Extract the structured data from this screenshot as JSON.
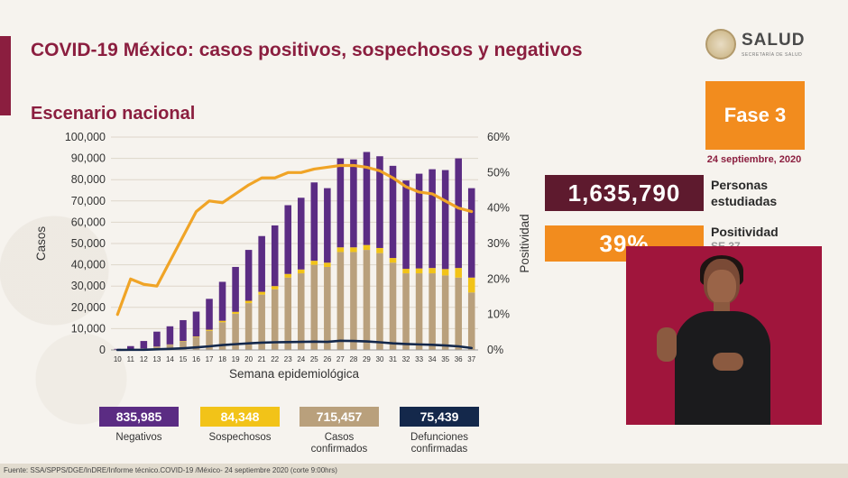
{
  "header": {
    "title": "COVID-19 México: casos positivos, sospechosos y negativos",
    "subtitle": "Escenario nacional",
    "logo_text": "SALUD",
    "logo_subtext": "SECRETARÍA DE SALUD"
  },
  "phase": {
    "label": "Fase 3",
    "date": "24 septiembre, 2020"
  },
  "stats": {
    "people_value": "1,635,790",
    "people_label_1": "Personas",
    "people_label_2": "estudiadas",
    "positivity_value": "39%",
    "positivity_label": "Positividad",
    "positivity_label_cut": "SE 37"
  },
  "legend": [
    {
      "value": "835,985",
      "label_1": "Negativos",
      "label_2": "",
      "color": "#5b2c83"
    },
    {
      "value": "84,348",
      "label_1": "Sospechosos",
      "label_2": "",
      "color": "#f2c318"
    },
    {
      "value": "715,457",
      "label_1": "Casos",
      "label_2": "confirmados",
      "color": "#b9a07c"
    },
    {
      "value": "75,439",
      "label_1": "Defunciones",
      "label_2": "confirmadas",
      "color": "#14284b"
    }
  ],
  "footer": "Fuente: SSA/SPPS/DGE/InDRE/Informe técnico.COVID-19 /México- 24 septiembre 2020 (corte 9:00hrs)",
  "chart_data": {
    "type": "bar",
    "stacked": true,
    "xlabel": "Semana epidemiológica",
    "ylabel": "Casos",
    "y2label": "Positividad",
    "ylim": [
      0,
      100000
    ],
    "y2lim": [
      0,
      60
    ],
    "yticks": [
      "0",
      "10,000",
      "20,000",
      "30,000",
      "40,000",
      "50,000",
      "60,000",
      "70,000",
      "80,000",
      "90,000",
      "100,000"
    ],
    "y2ticks": [
      "0%",
      "10%",
      "20%",
      "30%",
      "40%",
      "50%",
      "60%"
    ],
    "categories": [
      "10",
      "11",
      "12",
      "13",
      "14",
      "15",
      "16",
      "17",
      "18",
      "19",
      "20",
      "21",
      "22",
      "23",
      "24",
      "25",
      "26",
      "27",
      "28",
      "29",
      "30",
      "31",
      "32",
      "33",
      "34",
      "35",
      "36",
      "37"
    ],
    "series": [
      {
        "name": "Casos confirmados",
        "color": "#b9a07c",
        "values": [
          0,
          300,
          700,
          1500,
          2500,
          4000,
          6000,
          9000,
          13000,
          17000,
          22000,
          26000,
          28500,
          34000,
          36000,
          40000,
          39000,
          46000,
          46000,
          47000,
          45500,
          41000,
          36000,
          36000,
          36000,
          35000,
          34000,
          27000
        ]
      },
      {
        "name": "Sospechosos",
        "color": "#f2c318",
        "values": [
          0,
          0,
          0,
          100,
          100,
          200,
          300,
          500,
          700,
          900,
          1100,
          1300,
          1500,
          1700,
          1800,
          1900,
          2000,
          2200,
          2200,
          2300,
          2400,
          2200,
          2100,
          2300,
          2500,
          3000,
          4500,
          7000
        ]
      },
      {
        "name": "Negativos",
        "color": "#5b2c83",
        "values": [
          500,
          1500,
          3500,
          7000,
          8500,
          9800,
          11700,
          14500,
          18300,
          21100,
          23900,
          26200,
          28500,
          32300,
          33700,
          36800,
          35000,
          41800,
          41300,
          43700,
          43100,
          43300,
          41500,
          44500,
          46400,
          46500,
          51500,
          42000
        ]
      },
      {
        "name": "Defunciones confirmadas",
        "type": "line",
        "color": "#14284b",
        "values": [
          0,
          50,
          100,
          300,
          500,
          800,
          1200,
          1700,
          2300,
          2700,
          3100,
          3400,
          3600,
          3700,
          3800,
          3900,
          3800,
          4300,
          4200,
          4000,
          3600,
          3100,
          2800,
          2600,
          2400,
          2100,
          1700,
          900
        ]
      },
      {
        "name": "Positividad",
        "type": "line",
        "axis": "right",
        "color": "#f0a426",
        "values": [
          10,
          20,
          18.5,
          18,
          25,
          32,
          39,
          42,
          41.5,
          44,
          46.5,
          48.5,
          48.5,
          50,
          50,
          51,
          51.5,
          52,
          52,
          51.5,
          50.5,
          48.5,
          46,
          44.5,
          44,
          42,
          40,
          39
        ]
      }
    ]
  }
}
